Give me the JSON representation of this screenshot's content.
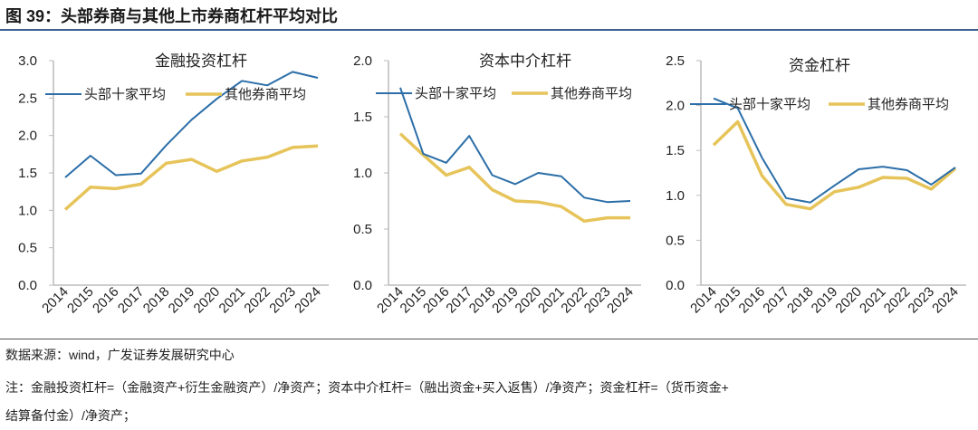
{
  "figure_title": "图 39：头部券商与其他上市券商杠杆平均对比",
  "source": "数据来源：wind，广发证券发展研究中心",
  "note_line1": "注：金融投资杠杆=（金融资产+衍生金融资产）/净资产；资本中介杠杆=（融出资金+买入返售）/净资产；资金杠杆=（货币资金+",
  "note_line2": "结算备付金）/净资产；",
  "colors": {
    "head_top10": "#2b6ea8",
    "others": "#e6c45a"
  },
  "chart_data": [
    {
      "type": "line",
      "title": "金融投资杠杆",
      "categories": [
        "2014",
        "2015",
        "2016",
        "2017",
        "2018",
        "2019",
        "2020",
        "2021",
        "2022",
        "2023",
        "2024"
      ],
      "ylim": [
        0,
        3.0
      ],
      "yticks": [
        "0.0",
        "0.5",
        "1.0",
        "1.5",
        "2.0",
        "2.5",
        "3.0"
      ],
      "legend": "top",
      "grid": false,
      "series": [
        {
          "name": "头部十家平均",
          "values": [
            1.44,
            1.73,
            1.47,
            1.49,
            1.87,
            2.21,
            2.49,
            2.73,
            2.67,
            2.85,
            2.77
          ]
        },
        {
          "name": "其他券商平均",
          "values": [
            1.01,
            1.31,
            1.29,
            1.35,
            1.63,
            1.68,
            1.52,
            1.66,
            1.71,
            1.84,
            1.86
          ]
        }
      ]
    },
    {
      "type": "line",
      "title": "资本中介杠杆",
      "categories": [
        "2014",
        "2015",
        "2016",
        "2017",
        "2018",
        "2019",
        "2020",
        "2021",
        "2022",
        "2023",
        "2024"
      ],
      "ylim": [
        0,
        2.0
      ],
      "yticks": [
        "0.0",
        "0.5",
        "1.0",
        "1.5",
        "2.0"
      ],
      "legend": "top",
      "grid": false,
      "series": [
        {
          "name": "头部十家平均",
          "values": [
            1.76,
            1.17,
            1.09,
            1.33,
            0.98,
            0.9,
            1.0,
            0.97,
            0.78,
            0.74,
            0.75
          ]
        },
        {
          "name": "其他券商平均",
          "values": [
            1.35,
            1.16,
            0.98,
            1.05,
            0.85,
            0.75,
            0.74,
            0.7,
            0.57,
            0.6,
            0.6
          ]
        }
      ]
    },
    {
      "type": "line",
      "title": "资金杠杆",
      "categories": [
        "2014",
        "2015",
        "2016",
        "2017",
        "2018",
        "2019",
        "2020",
        "2021",
        "2022",
        "2023",
        "2024"
      ],
      "ylim": [
        0,
        2.5
      ],
      "yticks": [
        "0.0",
        "0.5",
        "1.0",
        "1.5",
        "2.0",
        "2.5"
      ],
      "legend": "top",
      "grid": false,
      "series": [
        {
          "name": "头部十家平均",
          "values": [
            2.08,
            1.97,
            1.42,
            0.97,
            0.92,
            1.11,
            1.29,
            1.32,
            1.28,
            1.12,
            1.31
          ]
        },
        {
          "name": "其他券商平均",
          "values": [
            1.56,
            1.82,
            1.22,
            0.9,
            0.85,
            1.04,
            1.09,
            1.2,
            1.19,
            1.07,
            1.3
          ]
        }
      ]
    }
  ]
}
